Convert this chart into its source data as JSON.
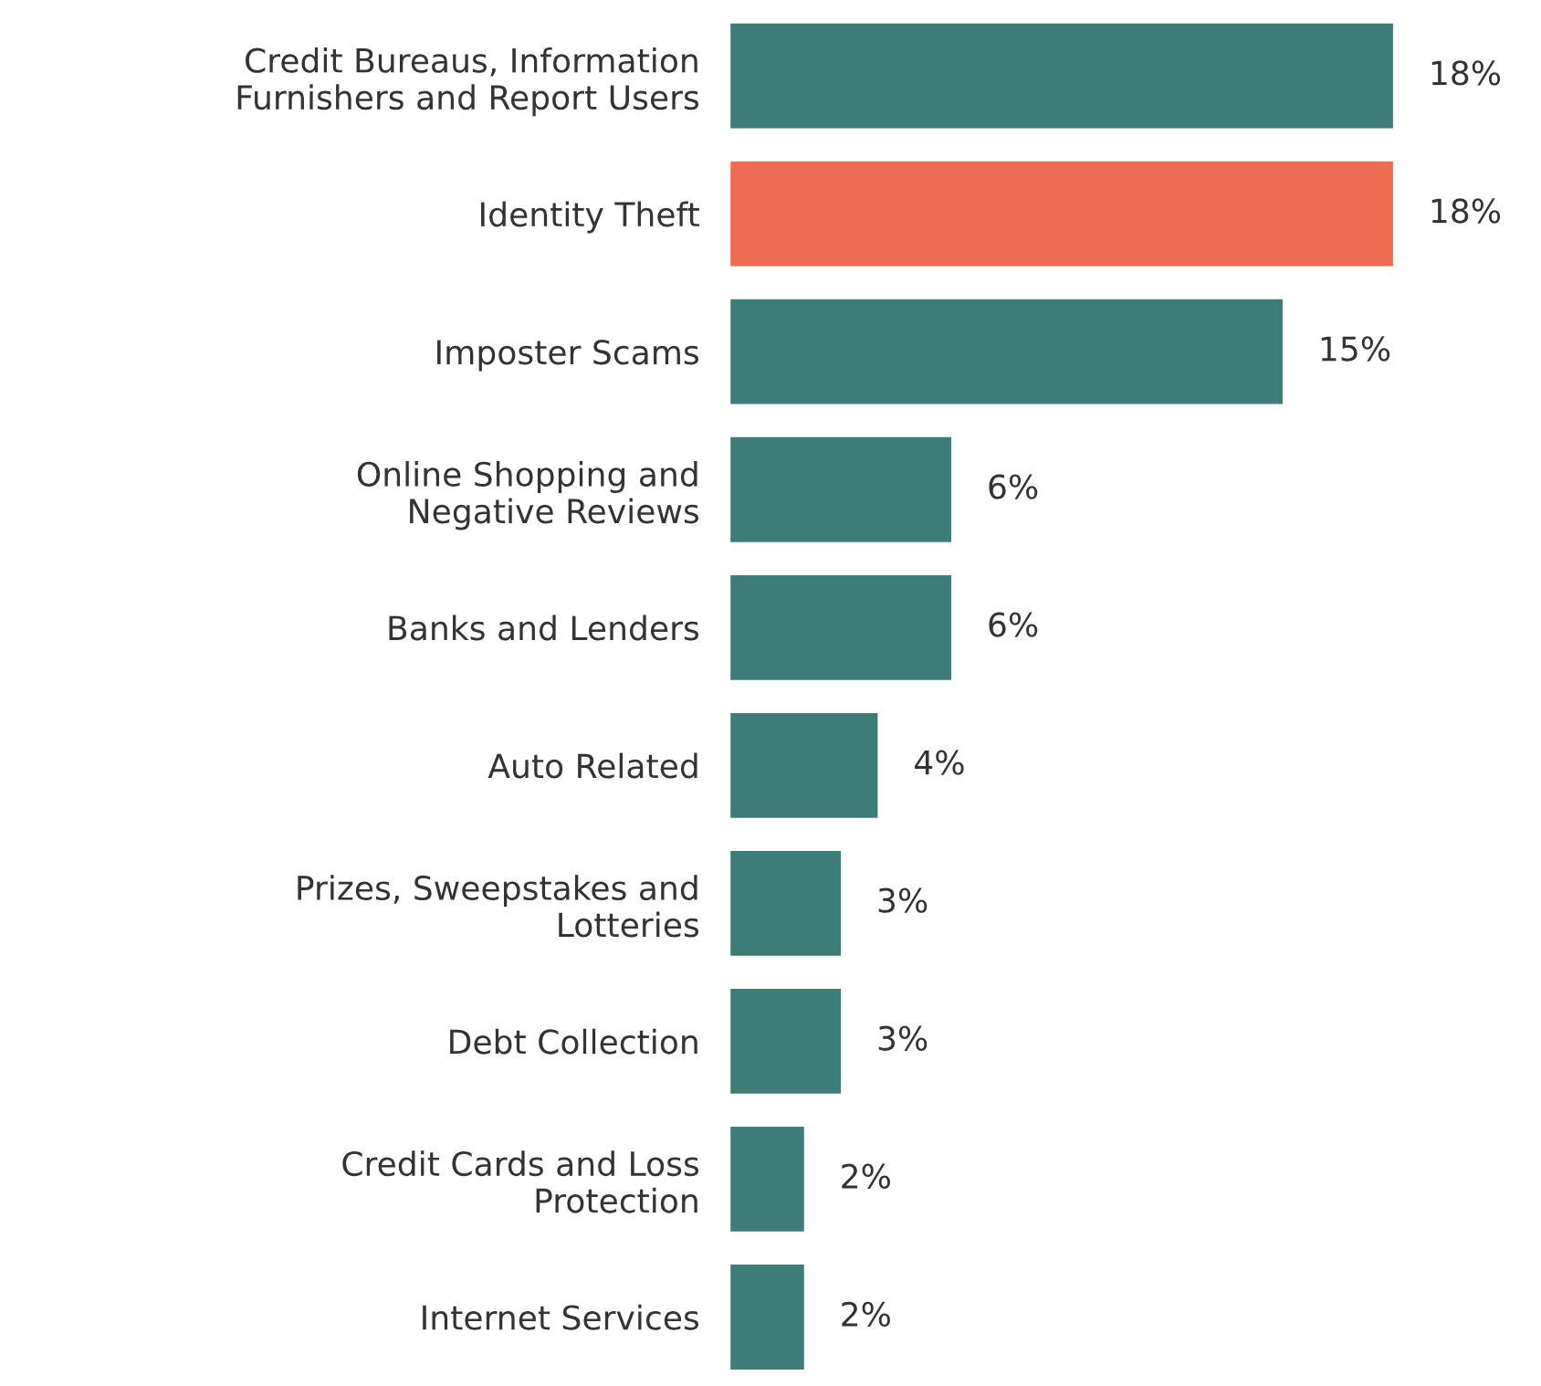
{
  "chart_data": {
    "type": "bar",
    "orientation": "horizontal",
    "categories": [
      "Credit Bureaus, Information\nFurnishers and Report Users",
      "Identity Theft",
      "Imposter Scams",
      "Online Shopping and\nNegative Reviews",
      "Banks and Lenders",
      "Auto Related",
      "Prizes, Sweepstakes and\nLotteries",
      "Debt Collection",
      "Credit Cards and Loss\nProtection",
      "Internet Services"
    ],
    "values": [
      18,
      18,
      15,
      6,
      6,
      4,
      3,
      3,
      2,
      2
    ],
    "value_labels": [
      "18%",
      "18%",
      "15%",
      "6%",
      "6%",
      "4%",
      "3%",
      "3%",
      "2%",
      "2%"
    ],
    "colors": [
      "#3e7c7a",
      "#ec6b52",
      "#3e7c7a",
      "#3e7c7a",
      "#3e7c7a",
      "#3e7c7a",
      "#3e7c7a",
      "#3e7c7a",
      "#3e7c7a",
      "#3e7c7a"
    ],
    "grid": false,
    "legend": false
  }
}
